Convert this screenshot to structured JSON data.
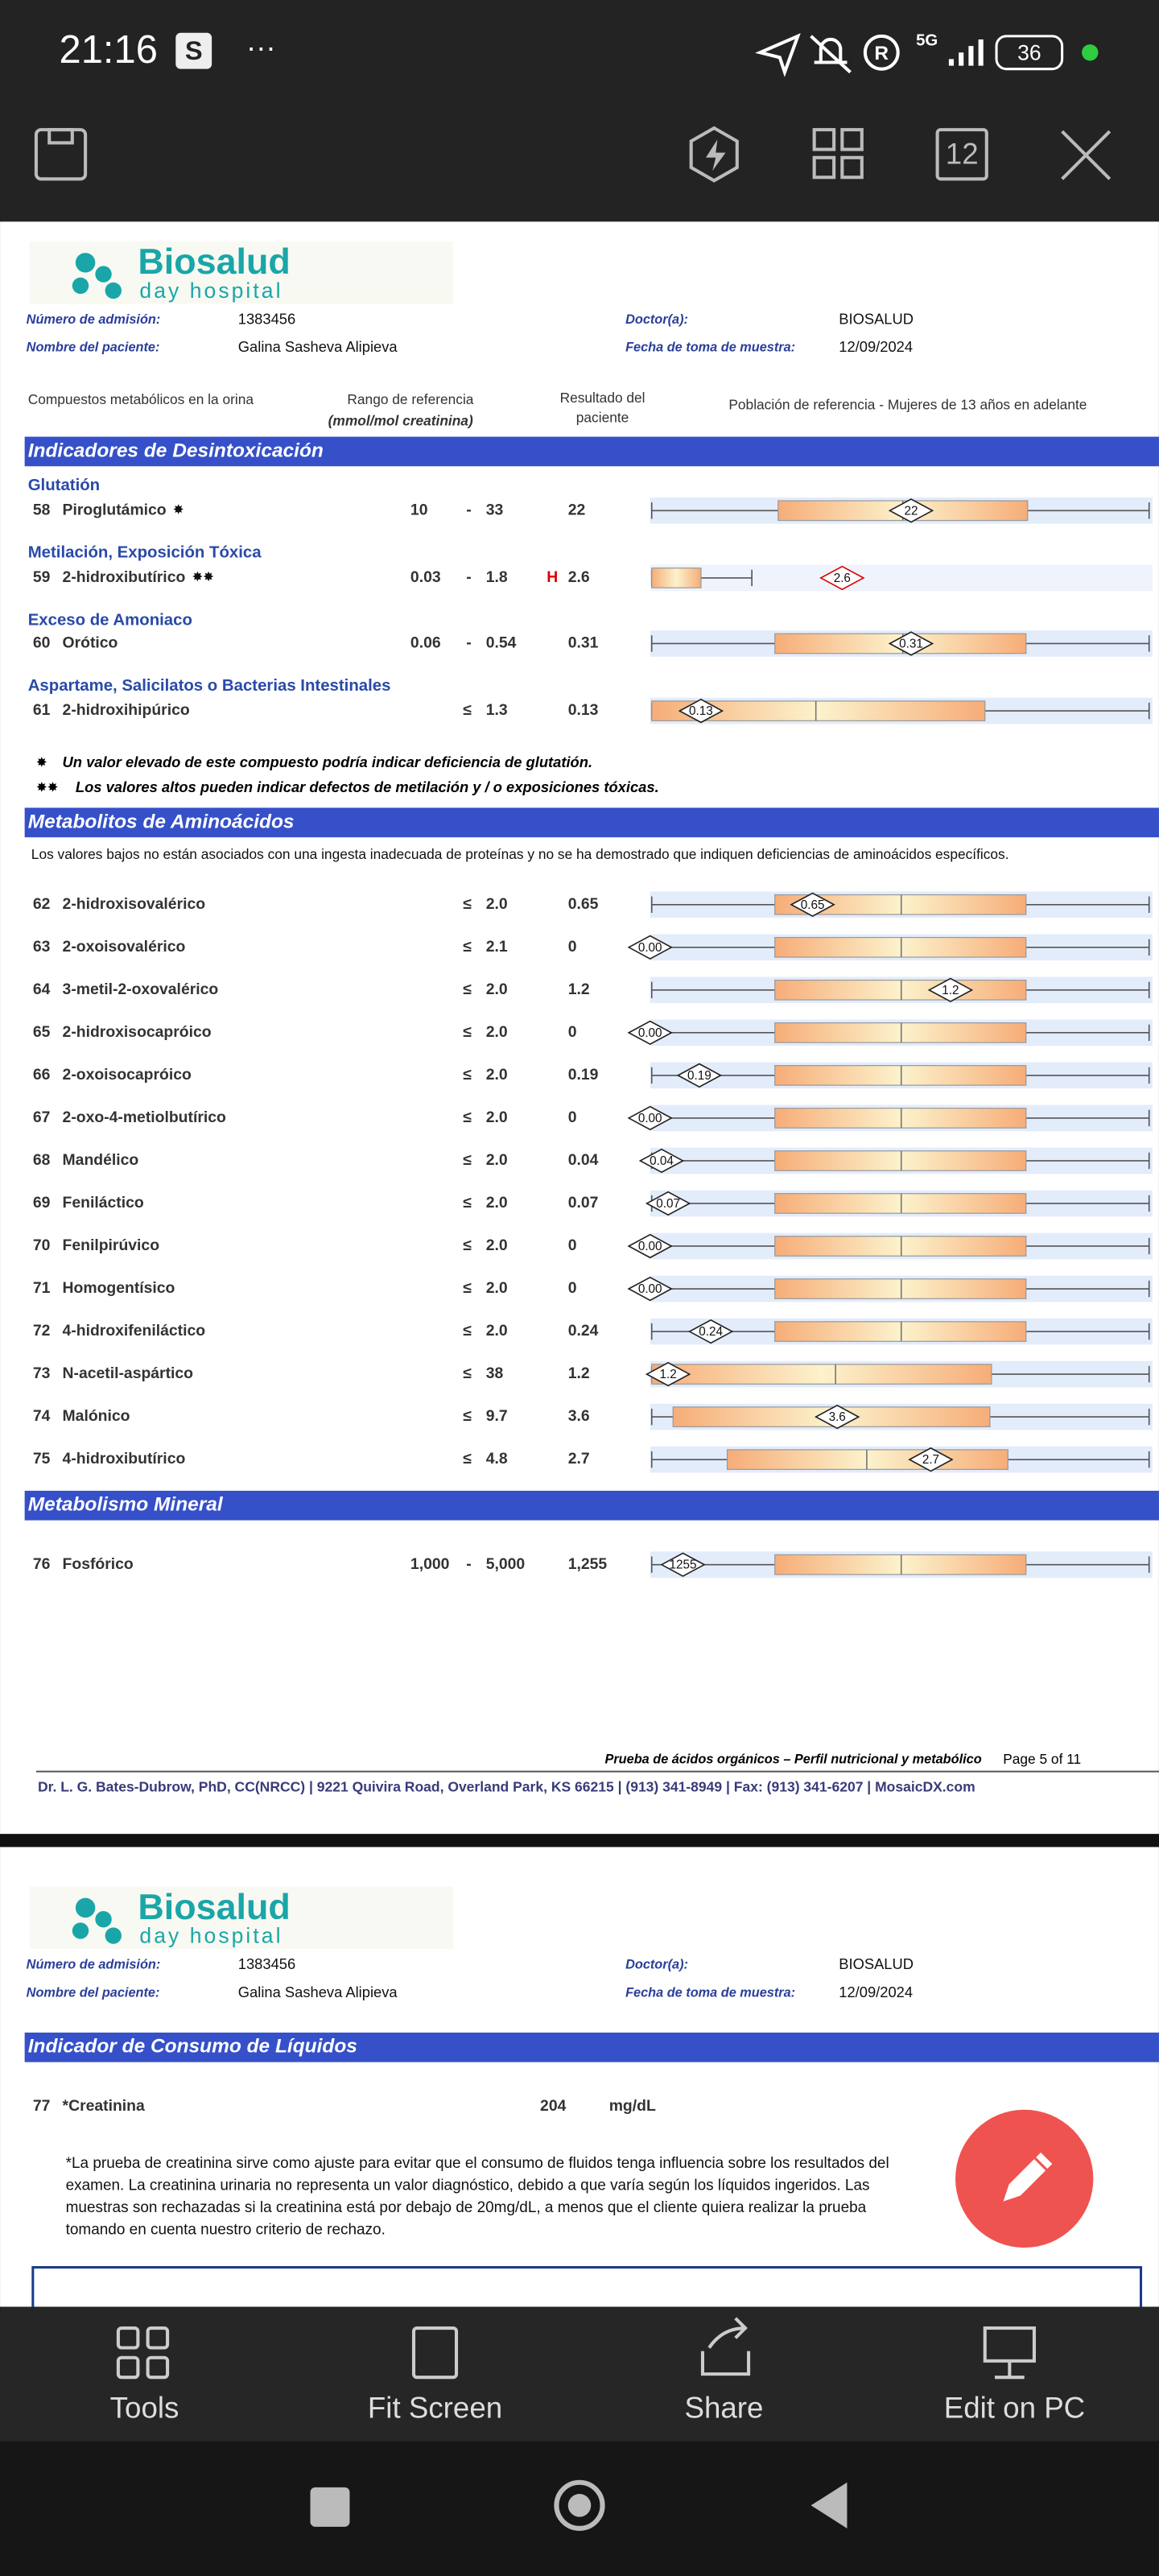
{
  "status_bar": {
    "time": "21:16",
    "network": "5G",
    "battery": "36"
  },
  "toolbar": {
    "page_number": "12"
  },
  "page1": {
    "logo": {
      "name": "Biosalud",
      "tagline": "day hospital"
    },
    "fields": [
      {
        "label": "Número de admisión:",
        "value": "1383456"
      },
      {
        "label": "Nombre del paciente:",
        "value": "Galina Sasheva Alipieva"
      },
      {
        "label": "Doctor(a):",
        "value": "BIOSALUD"
      },
      {
        "label": "Fecha de toma de muestra:",
        "value": "12/09/2024"
      }
    ],
    "column_headers": {
      "compounds": "Compuestos metabólicos en la orina",
      "range": "Rango de referencia",
      "range_units": "(mmol/mol creatinina)",
      "result": [
        "Resultado del",
        "paciente"
      ],
      "population": "Población de referencia - Mujeres de 13 años en adelante"
    },
    "sections": [
      {
        "title": "Indicadores de Desintoxicación",
        "groups": [
          {
            "title": "Glutatión",
            "rows": [
              {
                "number": "58",
                "name": "Piroglutámico",
                "marker": "✸",
                "low": "10",
                "high": "33",
                "result": "22",
                "marker_label": "22"
              }
            ]
          },
          {
            "title": "Metilación, Exposición Tóxica",
            "rows": [
              {
                "number": "59",
                "name": "2-hidroxibutírico",
                "marker": "✸✸",
                "low": "0.03",
                "high": "1.8",
                "flag": "H",
                "result": "2.6",
                "marker_label": "2.6"
              }
            ]
          },
          {
            "title": "Exceso de Amoniaco",
            "rows": [
              {
                "number": "60",
                "name": "Orótico",
                "low": "0.06",
                "high": "0.54",
                "result": "0.31",
                "marker_label": "0.31"
              }
            ]
          },
          {
            "title": "Aspartame, Salicilatos o Bacterias Intestinales",
            "rows": [
              {
                "number": "61",
                "name": "2-hidroxihipúrico",
                "op": "≤",
                "high": "1.3",
                "result": "0.13",
                "marker_label": "0.13"
              }
            ]
          }
        ],
        "notes": [
          {
            "symbol": "✸",
            "text": "Un valor elevado de este compuesto podría indicar deficiencia de glutatión."
          },
          {
            "symbol": "✸✸",
            "text": "Los valores altos pueden indicar defectos de metilación y / o exposiciones tóxicas."
          }
        ]
      },
      {
        "title": "Metabolitos de Aminoácidos",
        "intro": "Los valores bajos no están asociados con una ingesta inadecuada de proteínas y no se ha demostrado que indiquen deficiencias de aminoácidos específicos.",
        "groups": [
          {
            "rows": [
              {
                "number": "62",
                "name": "2-hidroxisovalérico",
                "op": "≤",
                "high": "2.0",
                "result": "0.65",
                "marker_label": "0.65"
              },
              {
                "number": "63",
                "name": "2-oxoisovalérico",
                "op": "≤",
                "high": "2.1",
                "result": "0",
                "marker_label": "0.00"
              },
              {
                "number": "64",
                "name": "3-metil-2-oxovalérico",
                "op": "≤",
                "high": "2.0",
                "result": "1.2",
                "marker_label": "1.2"
              },
              {
                "number": "65",
                "name": "2-hidroxisocapróico",
                "op": "≤",
                "high": "2.0",
                "result": "0",
                "marker_label": "0.00"
              },
              {
                "number": "66",
                "name": "2-oxoisocapróico",
                "op": "≤",
                "high": "2.0",
                "result": "0.19",
                "marker_label": "0.19"
              },
              {
                "number": "67",
                "name": "2-oxo-4-metiolbutírico",
                "op": "≤",
                "high": "2.0",
                "result": "0",
                "marker_label": "0.00"
              },
              {
                "number": "68",
                "name": "Mandélico",
                "op": "≤",
                "high": "2.0",
                "result": "0.04",
                "marker_label": "0.04"
              },
              {
                "number": "69",
                "name": "Feniláctico",
                "op": "≤",
                "high": "2.0",
                "result": "0.07",
                "marker_label": "0.07"
              },
              {
                "number": "70",
                "name": "Fenilpirúvico",
                "op": "≤",
                "high": "2.0",
                "result": "0",
                "marker_label": "0.00"
              },
              {
                "number": "71",
                "name": "Homogentísico",
                "op": "≤",
                "high": "2.0",
                "result": "0",
                "marker_label": "0.00"
              },
              {
                "number": "72",
                "name": "4-hidroxifeniláctico",
                "op": "≤",
                "high": "2.0",
                "result": "0.24",
                "marker_label": "0.24"
              },
              {
                "number": "73",
                "name": "N-acetil-aspártico",
                "op": "≤",
                "high": "38",
                "result": "1.2",
                "marker_label": "1.2"
              },
              {
                "number": "74",
                "name": "Malónico",
                "op": "≤",
                "high": "9.7",
                "result": "3.6",
                "marker_label": "3.6"
              },
              {
                "number": "75",
                "name": "4-hidroxibutírico",
                "op": "≤",
                "high": "4.8",
                "result": "2.7",
                "marker_label": "2.7"
              }
            ]
          }
        ]
      },
      {
        "title": "Metabolismo Mineral",
        "groups": [
          {
            "rows": [
              {
                "number": "76",
                "name": "Fosfórico",
                "low": "1,000",
                "high": "5,000",
                "result": "1,255",
                "marker_label": "1255"
              }
            ]
          }
        ]
      }
    ],
    "footer": {
      "report": "Prueba de ácidos orgánicos – Perfil nutricional y metabólico",
      "page": "Page 5 of 11",
      "address": "Dr. L. G. Bates-Dubrow, PhD, CC(NRCC) | 9221 Quivira Road, Overland Park, KS 66215  |  (913) 341-8949  |  Fax: (913) 341-6207 | MosaicDX.com"
    }
  },
  "page2": {
    "logo": {
      "name": "Biosalud",
      "tagline": "day hospital"
    },
    "fields": [
      {
        "label": "Número de admisión:",
        "value": "1383456"
      },
      {
        "label": "Nombre del paciente:",
        "value": "Galina Sasheva Alipieva"
      },
      {
        "label": "Doctor(a):",
        "value": "BIOSALUD"
      },
      {
        "label": "Fecha de toma de muestra:",
        "value": "12/09/2024"
      }
    ],
    "section": {
      "title": "Indicador de Consumo de Líquidos",
      "row": {
        "number": "77",
        "name": "*Creatinina",
        "result": "204",
        "units": "mg/dL"
      },
      "note": [
        "*La prueba de creatinina sirve como ajuste para evitar que el consumo de fluidos tenga influencia sobre los resultados del",
        "examen. La creatinina urinaria no representa un valor diagnóstico, debido a que varía según los líquidos ingeridos. Las",
        "muestras son rechazadas si la creatinina está por debajo de 20mg/dL, a menos que el cliente quiera realizar la prueba",
        "tomando en cuenta nuestro criterio de rechazo."
      ]
    }
  },
  "bottom_bar": [
    "Tools",
    "Fit Screen",
    "Share",
    "Edit on PC"
  ]
}
